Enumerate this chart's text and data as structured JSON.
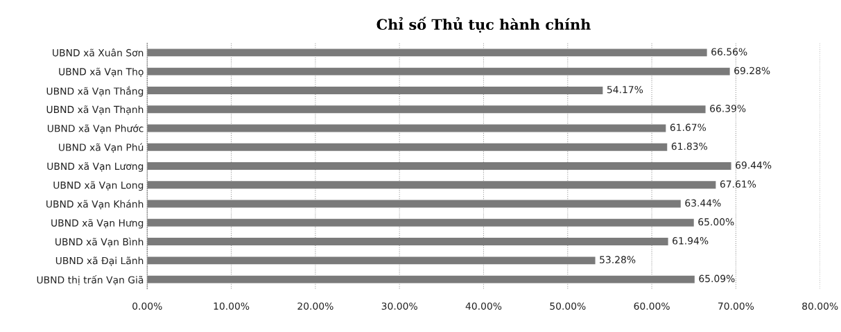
{
  "chart_data": {
    "type": "bar",
    "orientation": "horizontal",
    "title": "Chỉ số Thủ tục hành chính",
    "categories": [
      "UBND xã Xuân Sơn",
      "UBND xã Vạn Thọ",
      "UBND xã Vạn Thắng",
      "UBND xã Vạn Thạnh",
      "UBND xã Vạn Phước",
      "UBND xã Vạn Phú",
      "UBND xã Vạn Lương",
      "UBND xã Vạn Long",
      "UBND xã Vạn Khánh",
      "UBND xã Vạn Hưng",
      "UBND xã Vạn Bình",
      "UBND xã Đại Lãnh",
      "UBND thị trấn Vạn Giã"
    ],
    "values": [
      66.56,
      69.28,
      54.17,
      66.39,
      61.67,
      61.83,
      69.44,
      67.61,
      63.44,
      65.0,
      61.94,
      53.28,
      65.09
    ],
    "value_labels": [
      "66.56%",
      "69.28%",
      "54.17%",
      "66.39%",
      "61.67%",
      "61.83%",
      "69.44%",
      "67.61%",
      "63.44%",
      "65.00%",
      "61.94%",
      "53.28%",
      "65.09%"
    ],
    "color": "#7a7a7a",
    "xlim": [
      0,
      80
    ],
    "xticks": [
      {
        "value": 0,
        "label": "0.00%"
      },
      {
        "value": 10,
        "label": "10.00%"
      },
      {
        "value": 20,
        "label": "20.00%"
      },
      {
        "value": 30,
        "label": "30.00%"
      },
      {
        "value": 40,
        "label": "40.00%"
      },
      {
        "value": 50,
        "label": "50.00%"
      },
      {
        "value": 60,
        "label": "60.00%"
      },
      {
        "value": 70,
        "label": "70.00%"
      },
      {
        "value": 80,
        "label": "80.00%"
      }
    ],
    "grid": "x"
  }
}
